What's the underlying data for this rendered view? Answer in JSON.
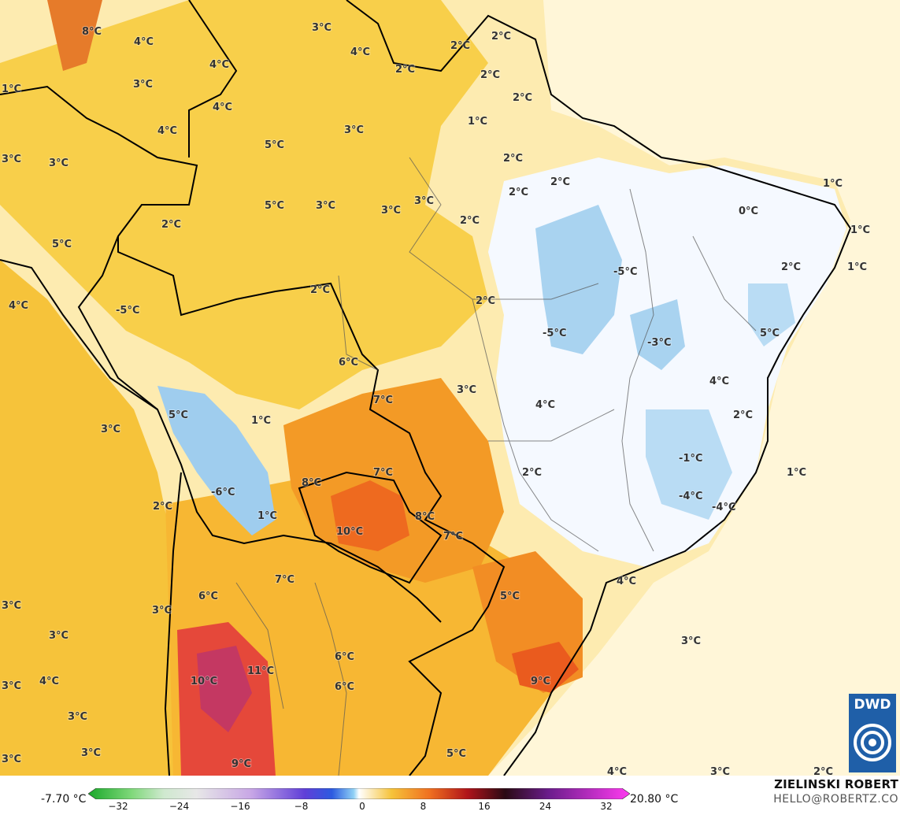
{
  "map": {
    "labels": [
      {
        "text": "8°C"
      },
      {
        "text": "4°C"
      },
      {
        "text": "3°C"
      },
      {
        "text": "4°C"
      },
      {
        "text": "3°C"
      },
      {
        "text": "4°C"
      },
      {
        "text": "4°C"
      },
      {
        "text": "2°C"
      },
      {
        "text": "2°C"
      },
      {
        "text": "1°C"
      },
      {
        "text": "2°C"
      },
      {
        "text": "2°C"
      },
      {
        "text": "1°C"
      },
      {
        "text": "3°C"
      },
      {
        "text": "3°C"
      },
      {
        "text": "4°C"
      },
      {
        "text": "2°C"
      },
      {
        "text": "2°C"
      },
      {
        "text": "2°C"
      },
      {
        "text": "5°C"
      },
      {
        "text": "3°C"
      },
      {
        "text": "3°C"
      },
      {
        "text": "3°C"
      },
      {
        "text": "2°C"
      },
      {
        "text": "2°C"
      },
      {
        "text": "1°C"
      },
      {
        "text": "0°C"
      },
      {
        "text": "1°C"
      },
      {
        "text": "1°C"
      },
      {
        "text": "2°C"
      },
      {
        "text": "5°C"
      },
      {
        "text": "3°C"
      },
      {
        "text": "5°C"
      },
      {
        "text": "4°C"
      },
      {
        "text": "2°C"
      },
      {
        "text": "2°C"
      },
      {
        "text": "2°C"
      },
      {
        "text": "-5°C"
      },
      {
        "text": "-5°C"
      },
      {
        "text": "-5°C"
      },
      {
        "text": "-3°C"
      },
      {
        "text": "5°C"
      },
      {
        "text": "6°C"
      },
      {
        "text": "7°C"
      },
      {
        "text": "3°C"
      },
      {
        "text": "4°C"
      },
      {
        "text": "1°C"
      },
      {
        "text": "3°C"
      },
      {
        "text": "5°C"
      },
      {
        "text": "4°C"
      },
      {
        "text": "2°C"
      },
      {
        "text": "-1°C"
      },
      {
        "text": "7°C"
      },
      {
        "text": "2°C"
      },
      {
        "text": "1°C"
      },
      {
        "text": "-6°C"
      },
      {
        "text": "8°C"
      },
      {
        "text": "2°C"
      },
      {
        "text": "-4°C"
      },
      {
        "text": "-4°C"
      },
      {
        "text": "1°C"
      },
      {
        "text": "8°C"
      },
      {
        "text": "10°C"
      },
      {
        "text": "7°C"
      },
      {
        "text": "7°C"
      },
      {
        "text": "4°C"
      },
      {
        "text": "6°C"
      },
      {
        "text": "5°C"
      },
      {
        "text": "3°C"
      },
      {
        "text": "3°C"
      },
      {
        "text": "3°C"
      },
      {
        "text": "6°C"
      },
      {
        "text": "3°C"
      },
      {
        "text": "11°C"
      },
      {
        "text": "10°C"
      },
      {
        "text": "4°C"
      },
      {
        "text": "6°C"
      },
      {
        "text": "9°C"
      },
      {
        "text": "3°C"
      },
      {
        "text": "3°C"
      },
      {
        "text": "3°C"
      },
      {
        "text": "9°C"
      },
      {
        "text": "3°C"
      },
      {
        "text": "5°C"
      },
      {
        "text": "4°C"
      },
      {
        "text": "3°C"
      },
      {
        "text": "2°C"
      }
    ]
  },
  "legend": {
    "min": "-7.70 °C",
    "max": "20.80 °C",
    "ticks": [
      "−32",
      "−24",
      "−16",
      "−8",
      "0",
      "8",
      "16",
      "24",
      "32"
    ]
  },
  "credit": {
    "author": "ZIELINSKI ROBERT",
    "email": "HELLO@ROBERTZ.CO"
  },
  "logo": {
    "text": "DWD"
  }
}
